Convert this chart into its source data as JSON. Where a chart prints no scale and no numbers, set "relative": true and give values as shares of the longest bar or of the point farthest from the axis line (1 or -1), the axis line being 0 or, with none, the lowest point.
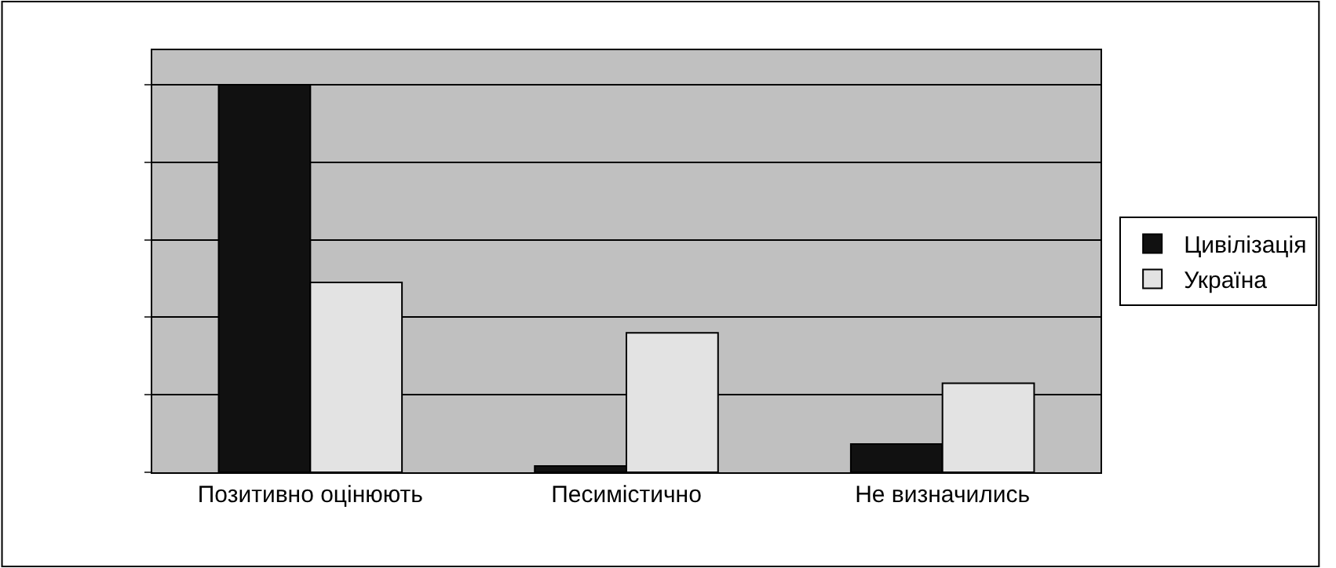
{
  "chart_data": {
    "type": "bar",
    "relative": true,
    "categories": [
      "Позитивно оцінюють",
      "Песимістично",
      "Не визначились"
    ],
    "series": [
      {
        "name": "Цивілізація",
        "color": "#111111",
        "values": [
          1,
          0.016,
          0.073
        ]
      },
      {
        "name": "Україна",
        "color": "#e3e3e3",
        "values": [
          0.49,
          0.36,
          0.23
        ]
      }
    ],
    "grid": "y",
    "legend": "right"
  }
}
